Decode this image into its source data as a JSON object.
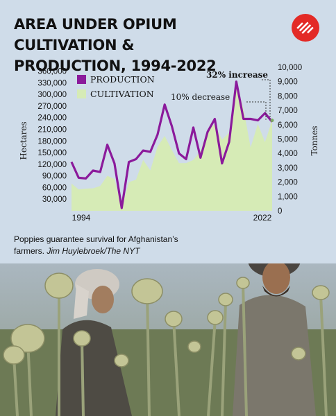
{
  "title_line1": "AREA UNDER OPIUM CULTIVATION &",
  "title_line2": "PRODUCTION, 1994-2022",
  "logo_icon": "express-logo-icon",
  "caption": {
    "text": "Poppies guarantee survival for Afghanistan’s farmers.",
    "credit": "Jim Huylebroek/The NYT"
  },
  "colors": {
    "production": "#8b1a9b",
    "cultivation": "#d6ebb6",
    "background": "#cfdce9",
    "logo": "#e32a26"
  },
  "chart_data": {
    "type": "area",
    "x_tick_labels": [
      "1994",
      "2022"
    ],
    "y_left_label": "Hectares",
    "y_right_label": "Tonnes",
    "y_left_ticks": [
      "360,000",
      "330,000",
      "300,000",
      "270,000",
      "240,000",
      "210,000",
      "180,000",
      "150,000",
      "120,000",
      "90,000",
      "60,000",
      "30,000"
    ],
    "y_right_ticks": [
      "10,000",
      "9,000",
      "8,000",
      "7,000",
      "6,000",
      "5,000",
      "4,000",
      "3,000",
      "2,000",
      "1,000",
      "0"
    ],
    "y_left_range": [
      0,
      370000
    ],
    "y_right_range": [
      0,
      10000
    ],
    "legend": [
      "PRODUCTION",
      "CULTIVATION"
    ],
    "annotations": [
      "32% increase",
      "10% decrease"
    ],
    "series": [
      {
        "name": "PRODUCTION",
        "axis": "right",
        "x": [
          1994,
          1995,
          1996,
          1997,
          1998,
          1999,
          2000,
          2001,
          2002,
          2003,
          2004,
          2005,
          2006,
          2007,
          2008,
          2009,
          2010,
          2011,
          2012,
          2013,
          2014,
          2015,
          2016,
          2017,
          2018,
          2019,
          2020,
          2021,
          2022
        ],
        "values": [
          3400,
          2300,
          2250,
          2800,
          2700,
          4600,
          3300,
          190,
          3400,
          3600,
          4200,
          4100,
          5300,
          7400,
          5900,
          4000,
          3600,
          5800,
          3700,
          5500,
          6400,
          3300,
          4800,
          9000,
          6400,
          6400,
          6300,
          6800,
          6200
        ]
      },
      {
        "name": "CULTIVATION",
        "axis": "left",
        "x": [
          1994,
          1995,
          1996,
          1997,
          1998,
          1999,
          2000,
          2001,
          2002,
          2003,
          2004,
          2005,
          2006,
          2007,
          2008,
          2009,
          2010,
          2011,
          2012,
          2013,
          2014,
          2015,
          2016,
          2017,
          2018,
          2019,
          2020,
          2021,
          2022
        ],
        "values": [
          70000,
          55000,
          57000,
          58000,
          64000,
          90000,
          82000,
          8000,
          74000,
          80000,
          131000,
          104000,
          165000,
          193000,
          157000,
          123000,
          123000,
          131000,
          154000,
          209000,
          224000,
          183000,
          201000,
          328000,
          263000,
          163000,
          224000,
          177000,
          233000
        ]
      }
    ]
  }
}
